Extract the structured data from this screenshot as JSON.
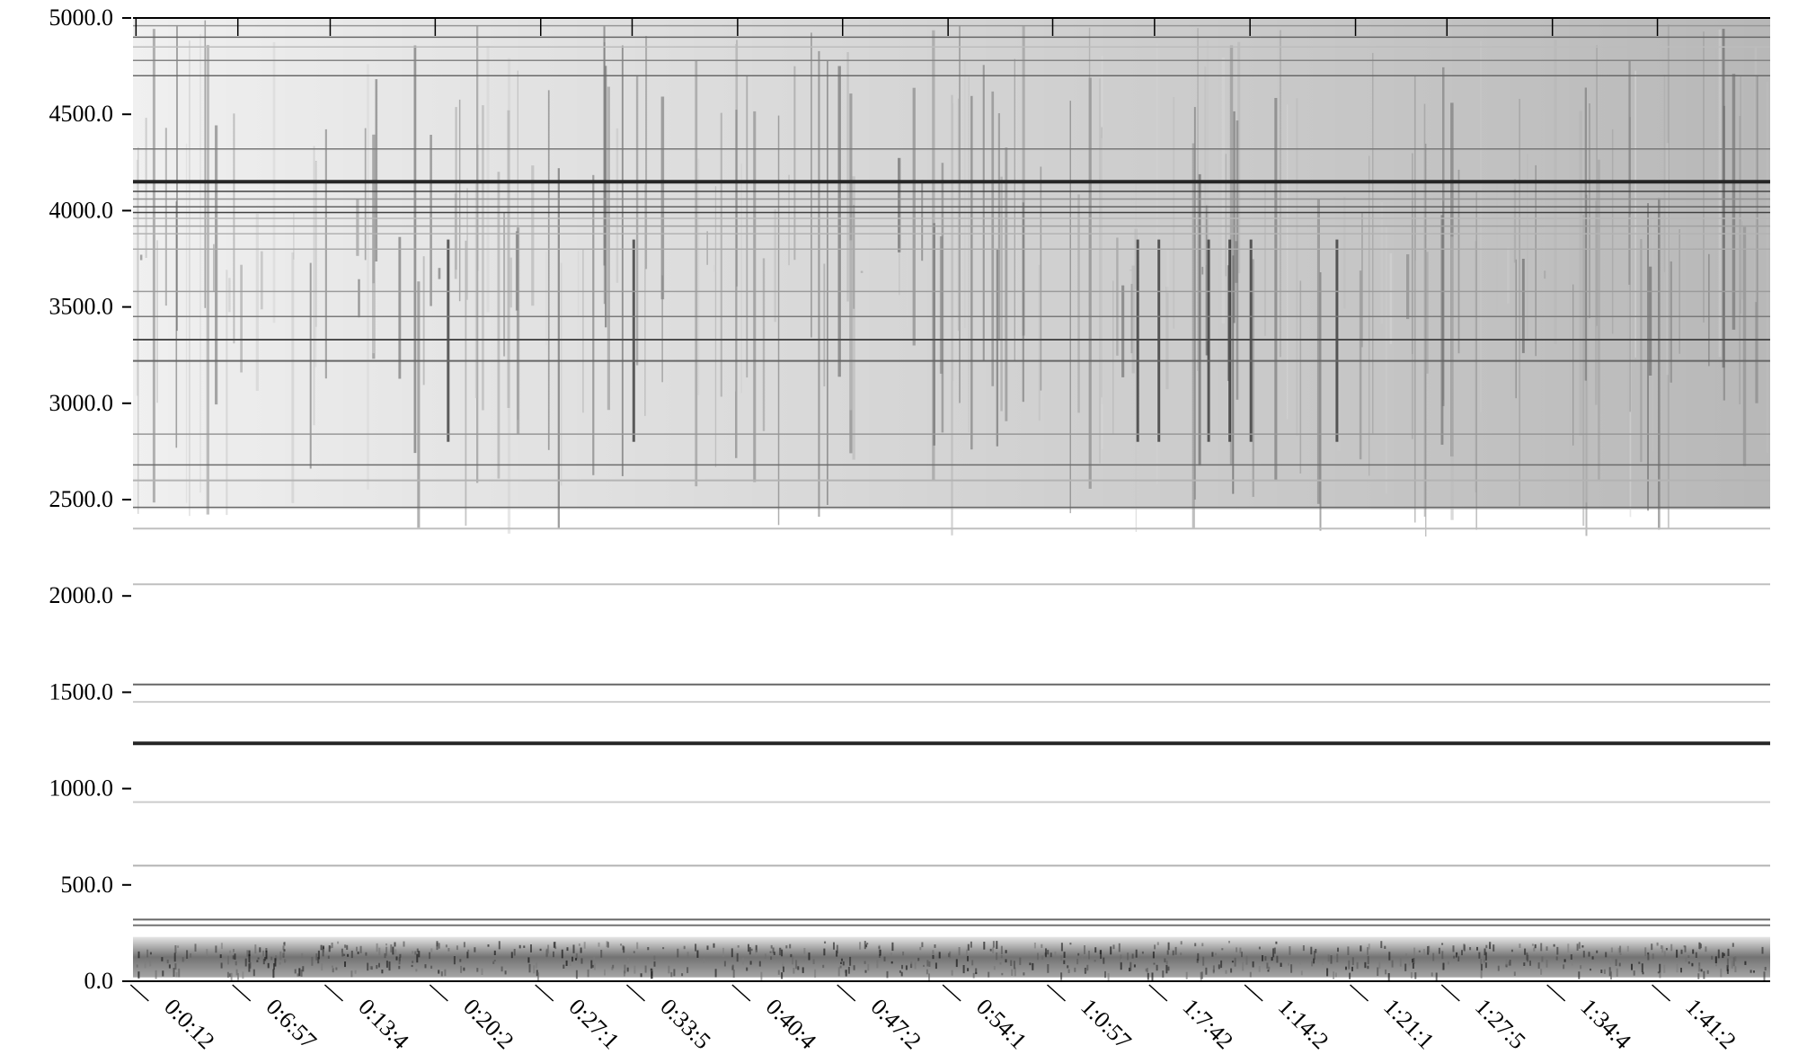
{
  "chart_data": {
    "type": "heatmap",
    "title": "",
    "xlabel": "",
    "ylabel": "",
    "ylim": [
      0,
      5000
    ],
    "colormap": [
      "#ffffff",
      "#000000"
    ],
    "grid": false,
    "legend": "none",
    "y_tick_labels": [
      "0.0",
      "500.0",
      "1000.0",
      "1500.0",
      "2000.0",
      "2500.0",
      "3000.0",
      "3500.0",
      "4000.0",
      "4500.0",
      "5000.0"
    ],
    "y_tick_values": [
      0,
      500,
      1000,
      1500,
      2000,
      2500,
      3000,
      3500,
      4000,
      4500,
      5000
    ],
    "x_tick_labels": [
      "0:0:12",
      "0:6:57",
      "0:13:4",
      "0:20:2",
      "0:27:1",
      "0:33:5",
      "0:40:4",
      "0:47:2",
      "0:54:1",
      "1:0:57",
      "1:7:42",
      "1:14:2",
      "1:21:1",
      "1:27:5",
      "1:34:4",
      "1:41:2"
    ],
    "x_tick_minutes": [
      0.2,
      6.95,
      13.07,
      20.03,
      27.02,
      33.08,
      40.07,
      47.03,
      54.02,
      60.95,
      67.7,
      74.03,
      81.02,
      87.08,
      94.07,
      101.03
    ],
    "x_range_minutes": [
      0,
      108.5
    ],
    "persistent_bands": [
      {
        "freq": 1235,
        "intensity": 0.85
      },
      {
        "freq": 1540,
        "intensity": 0.6
      },
      {
        "freq": 4150,
        "intensity": 0.85
      },
      {
        "freq": 3330,
        "intensity": 0.7
      },
      {
        "freq": 3220,
        "intensity": 0.6
      },
      {
        "freq": 320,
        "intensity": 0.6
      },
      {
        "freq": 290,
        "intensity": 0.55
      },
      {
        "freq": 2600,
        "intensity": 0.3
      },
      {
        "freq": 2350,
        "intensity": 0.25
      },
      {
        "freq": 2060,
        "intensity": 0.25
      },
      {
        "freq": 600,
        "intensity": 0.3
      },
      {
        "freq": 930,
        "intensity": 0.2
      },
      {
        "freq": 1450,
        "intensity": 0.2
      }
    ]
  }
}
